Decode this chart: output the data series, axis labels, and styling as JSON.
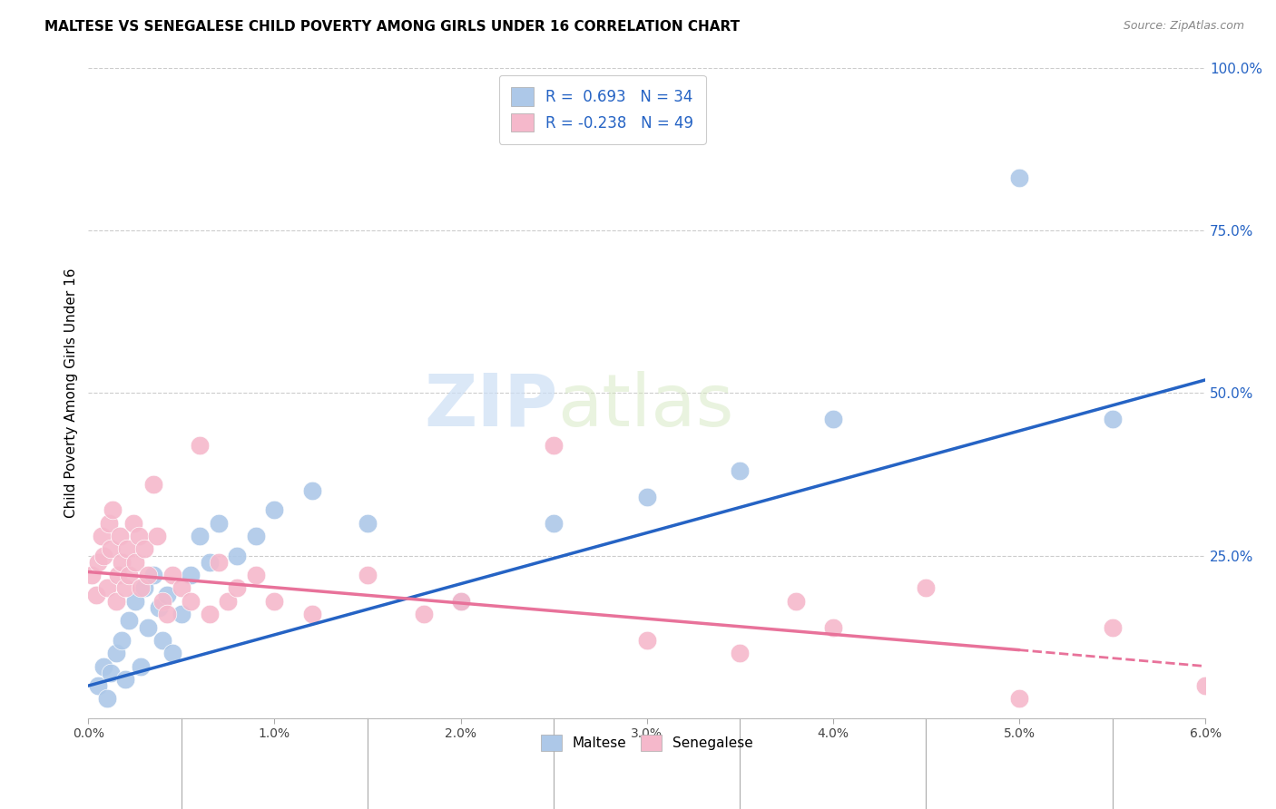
{
  "title": "MALTESE VS SENEGALESE CHILD POVERTY AMONG GIRLS UNDER 16 CORRELATION CHART",
  "source": "Source: ZipAtlas.com",
  "ylabel": "Child Poverty Among Girls Under 16",
  "xlim": [
    0.0,
    6.0
  ],
  "ylim": [
    0.0,
    100.0
  ],
  "yticks": [
    0,
    25,
    50,
    75,
    100
  ],
  "ytick_labels": [
    "",
    "25.0%",
    "50.0%",
    "75.0%",
    "100.0%"
  ],
  "xticks": [
    0,
    1,
    2,
    3,
    4,
    5,
    6
  ],
  "xtick_labels": [
    "0.0%",
    "1.0%",
    "2.0%",
    "3.0%",
    "4.0%",
    "5.0%",
    "6.0%"
  ],
  "legend_r1": "R =  0.693   N = 34",
  "legend_r2": "R = -0.238   N = 49",
  "maltese_color": "#adc8e8",
  "senegalese_color": "#f5b8cb",
  "maltese_line_color": "#2563c4",
  "senegalese_line_color": "#e8729a",
  "text_color": "#2563c4",
  "watermark_zip": "ZIP",
  "watermark_atlas": "atlas",
  "blue_line_x0": 0.0,
  "blue_line_y0": 5.0,
  "blue_line_x1": 6.0,
  "blue_line_y1": 52.0,
  "pink_line_x0": 0.0,
  "pink_line_y0": 22.5,
  "pink_line_x1": 5.0,
  "pink_line_y1": 10.5,
  "pink_dash_x0": 5.0,
  "pink_dash_y0": 10.5,
  "pink_dash_x1": 6.0,
  "pink_dash_y1": 8.0,
  "maltese_scatter_x": [
    0.05,
    0.08,
    0.1,
    0.12,
    0.15,
    0.18,
    0.2,
    0.22,
    0.25,
    0.28,
    0.3,
    0.32,
    0.35,
    0.38,
    0.4,
    0.42,
    0.45,
    0.5,
    0.55,
    0.6,
    0.65,
    0.7,
    0.8,
    0.9,
    1.0,
    1.2,
    1.5,
    2.0,
    2.5,
    3.0,
    3.5,
    4.0,
    5.0,
    5.5
  ],
  "maltese_scatter_y": [
    5,
    8,
    3,
    7,
    10,
    12,
    6,
    15,
    18,
    8,
    20,
    14,
    22,
    17,
    12,
    19,
    10,
    16,
    22,
    28,
    24,
    30,
    25,
    28,
    32,
    35,
    30,
    18,
    30,
    34,
    38,
    46,
    83,
    46
  ],
  "senegalese_scatter_x": [
    0.02,
    0.04,
    0.05,
    0.07,
    0.08,
    0.1,
    0.11,
    0.12,
    0.13,
    0.15,
    0.16,
    0.17,
    0.18,
    0.2,
    0.21,
    0.22,
    0.24,
    0.25,
    0.27,
    0.28,
    0.3,
    0.32,
    0.35,
    0.37,
    0.4,
    0.42,
    0.45,
    0.5,
    0.55,
    0.6,
    0.65,
    0.7,
    0.75,
    0.8,
    0.9,
    1.0,
    1.2,
    1.5,
    1.8,
    2.0,
    2.5,
    3.0,
    3.5,
    3.8,
    4.0,
    4.5,
    5.0,
    5.5,
    6.0
  ],
  "senegalese_scatter_y": [
    22,
    19,
    24,
    28,
    25,
    20,
    30,
    26,
    32,
    18,
    22,
    28,
    24,
    20,
    26,
    22,
    30,
    24,
    28,
    20,
    26,
    22,
    36,
    28,
    18,
    16,
    22,
    20,
    18,
    42,
    16,
    24,
    18,
    20,
    22,
    18,
    16,
    22,
    16,
    18,
    42,
    12,
    10,
    18,
    14,
    20,
    3,
    14,
    5
  ]
}
